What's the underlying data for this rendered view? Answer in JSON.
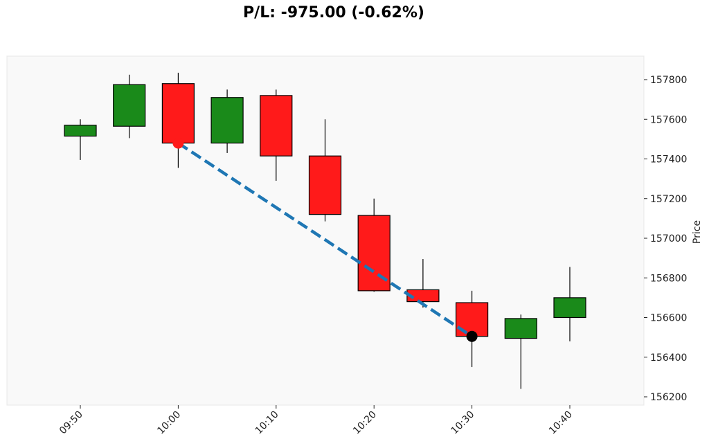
{
  "chart_data": {
    "type": "candlestick",
    "title": "P/L: -975.00 (-0.62%)",
    "ylabel": "Price",
    "xlabel": "",
    "ylim": [
      156150,
      157950
    ],
    "grid": false,
    "background": "#f9f9f9",
    "up_color": "#1a8a1a",
    "down_color": "#ff1a1a",
    "x_ticks": [
      "09:50",
      "10:00",
      "10:10",
      "10:20",
      "10:30",
      "10:40"
    ],
    "y_ticks": [
      156200,
      156400,
      156600,
      156800,
      157000,
      157200,
      157400,
      157600,
      157800
    ],
    "candles": [
      {
        "time": "09:50",
        "open": 157515,
        "high": 157600,
        "low": 157395,
        "close": 157570
      },
      {
        "time": "09:55",
        "open": 157565,
        "high": 157825,
        "low": 157505,
        "close": 157775
      },
      {
        "time": "10:00",
        "open": 157780,
        "high": 157835,
        "low": 157355,
        "close": 157480
      },
      {
        "time": "10:05",
        "open": 157480,
        "high": 157750,
        "low": 157430,
        "close": 157710
      },
      {
        "time": "10:10",
        "open": 157720,
        "high": 157750,
        "low": 157290,
        "close": 157415
      },
      {
        "time": "10:15",
        "open": 157415,
        "high": 157600,
        "low": 157085,
        "close": 157120
      },
      {
        "time": "10:20",
        "open": 157115,
        "high": 157200,
        "low": 156730,
        "close": 156735
      },
      {
        "time": "10:25",
        "open": 156740,
        "high": 156895,
        "low": 156650,
        "close": 156680
      },
      {
        "time": "10:30",
        "open": 156675,
        "high": 156735,
        "low": 156350,
        "close": 156505
      },
      {
        "time": "10:35",
        "open": 156495,
        "high": 156615,
        "low": 156240,
        "close": 156595
      },
      {
        "time": "10:40",
        "open": 156600,
        "high": 156855,
        "low": 156480,
        "close": 156700
      }
    ],
    "trade": {
      "entry": {
        "time": "10:00",
        "price": 157480,
        "color": "#ff1a1a"
      },
      "exit": {
        "time": "10:30",
        "price": 156505,
        "color": "#000000"
      },
      "line_color": "#1f77b4",
      "line_style": "dashed"
    }
  }
}
